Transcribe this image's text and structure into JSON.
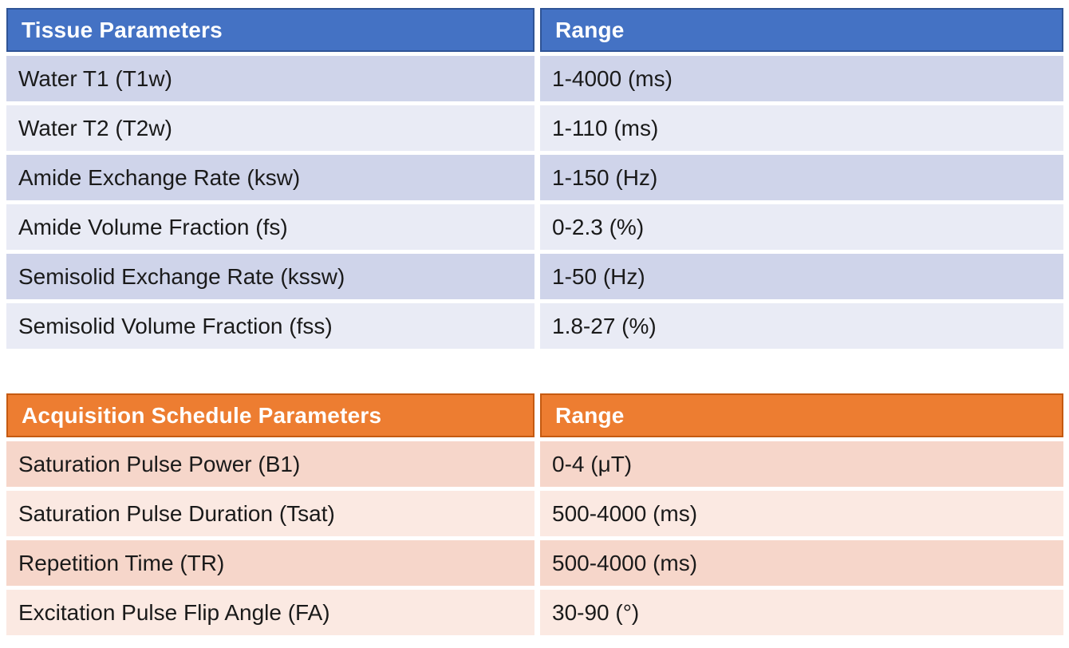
{
  "tables": [
    {
      "title": "Tissue Parameters",
      "range_label": "Range",
      "colors": {
        "header_bg": "#4472C4",
        "header_border": "#2F5496",
        "row_odd": "#CFD4EA",
        "row_even": "#E9EBF5"
      },
      "rows": [
        {
          "param": "Water T1 (T1w)",
          "range": "1-4000 (ms)"
        },
        {
          "param": "Water T2 (T2w)",
          "range": "1-110 (ms)"
        },
        {
          "param": "Amide Exchange Rate (ksw)",
          "range": "1-150 (Hz)"
        },
        {
          "param": "Amide Volume Fraction (fs)",
          "range": "0-2.3 (%)"
        },
        {
          "param": "Semisolid Exchange Rate (kssw)",
          "range": "1-50 (Hz)"
        },
        {
          "param": "Semisolid Volume Fraction (fss)",
          "range": "1.8-27 (%)"
        }
      ]
    },
    {
      "title": "Acquisition Schedule Parameters",
      "range_label": "Range",
      "colors": {
        "header_bg": "#ED7D31",
        "header_border": "#C55A11",
        "row_odd": "#F6D6CA",
        "row_even": "#FBE9E2"
      },
      "rows": [
        {
          "param": "Saturation Pulse Power (B1)",
          "range": "0-4 (μT)"
        },
        {
          "param": "Saturation Pulse Duration (Tsat)",
          "range": "500-4000 (ms)"
        },
        {
          "param": "Repetition Time (TR)",
          "range": "500-4000 (ms)"
        },
        {
          "param": "Excitation Pulse Flip Angle (FA)",
          "range": "30-90 (°)"
        }
      ]
    }
  ]
}
